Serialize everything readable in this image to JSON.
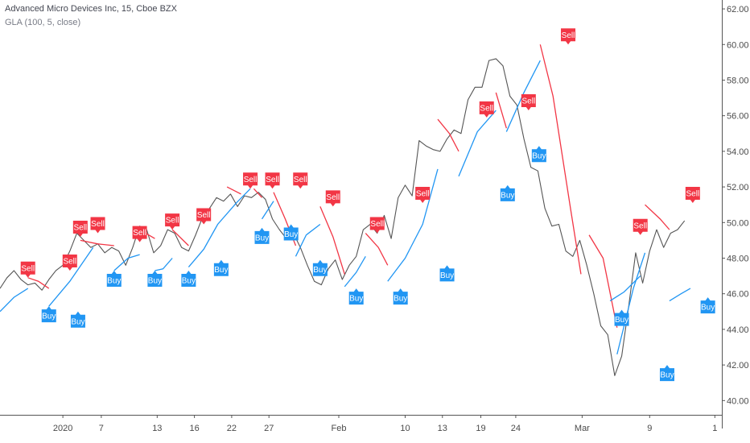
{
  "legend": {
    "line1": "Advanced Micro Devices Inc, 15, Cboe BZX",
    "line2": "GLA (100, 5, close)"
  },
  "colors": {
    "price": "#555555",
    "up": "#2196f3",
    "down": "#f23645",
    "axis": "#555555"
  },
  "signal_labels": {
    "buy": "Buy",
    "sell": "Sell"
  },
  "chart_data": {
    "type": "line",
    "ylim": [
      39.2,
      62.5
    ],
    "y_ticks": [
      40,
      42,
      44,
      46,
      48,
      50,
      52,
      54,
      56,
      58,
      60,
      62
    ],
    "y_tick_labels": [
      "40.00",
      "42.00",
      "44.00",
      "46.00",
      "48.00",
      "50.00",
      "52.00",
      "54.00",
      "56.00",
      "58.00",
      "60.00",
      "62.00"
    ],
    "x_range": [
      0,
      62
    ],
    "x_ticks": [
      {
        "x": 5.4,
        "label": "2020"
      },
      {
        "x": 8.7,
        "label": "7"
      },
      {
        "x": 13.5,
        "label": "13"
      },
      {
        "x": 16.7,
        "label": "16"
      },
      {
        "x": 19.9,
        "label": "22"
      },
      {
        "x": 23.1,
        "label": "27"
      },
      {
        "x": 29.1,
        "label": "Feb"
      },
      {
        "x": 34.8,
        "label": "10"
      },
      {
        "x": 38.0,
        "label": "13"
      },
      {
        "x": 41.3,
        "label": "19"
      },
      {
        "x": 44.3,
        "label": "24"
      },
      {
        "x": 50.0,
        "label": "Mar"
      },
      {
        "x": 55.8,
        "label": "9"
      },
      {
        "x": 61.4,
        "label": "1"
      }
    ],
    "price": [
      [
        0,
        46.3
      ],
      [
        0.6,
        46.9
      ],
      [
        1.2,
        47.3
      ],
      [
        1.8,
        46.8
      ],
      [
        2.4,
        46.5
      ],
      [
        3.0,
        46.6
      ],
      [
        3.6,
        46.2
      ],
      [
        4.2,
        46.8
      ],
      [
        4.8,
        47.3
      ],
      [
        5.4,
        47.6
      ],
      [
        6.0,
        48.4
      ],
      [
        6.6,
        49.4
      ],
      [
        7.2,
        49.0
      ],
      [
        7.8,
        48.6
      ],
      [
        8.4,
        48.8
      ],
      [
        9.0,
        48.3
      ],
      [
        9.6,
        48.6
      ],
      [
        10.2,
        48.4
      ],
      [
        10.8,
        47.6
      ],
      [
        11.4,
        48.6
      ],
      [
        12.0,
        49.8
      ],
      [
        12.6,
        49.6
      ],
      [
        13.2,
        48.3
      ],
      [
        13.8,
        48.7
      ],
      [
        14.4,
        49.6
      ],
      [
        15.0,
        49.4
      ],
      [
        15.6,
        48.6
      ],
      [
        16.2,
        48.4
      ],
      [
        16.8,
        49.3
      ],
      [
        17.4,
        50.3
      ],
      [
        18.0,
        50.8
      ],
      [
        18.6,
        51.4
      ],
      [
        19.2,
        51.2
      ],
      [
        19.8,
        51.6
      ],
      [
        20.4,
        50.9
      ],
      [
        21.0,
        51.5
      ],
      [
        21.6,
        51.4
      ],
      [
        22.2,
        51.7
      ],
      [
        22.8,
        51.3
      ],
      [
        23.4,
        50.2
      ],
      [
        24.0,
        49.6
      ],
      [
        24.6,
        49.1
      ],
      [
        25.2,
        49.4
      ],
      [
        25.8,
        48.6
      ],
      [
        26.4,
        47.6
      ],
      [
        27.0,
        46.7
      ],
      [
        27.6,
        46.5
      ],
      [
        28.2,
        47.4
      ],
      [
        28.8,
        47.9
      ],
      [
        29.4,
        46.8
      ],
      [
        30.0,
        47.6
      ],
      [
        30.6,
        48.1
      ],
      [
        31.2,
        49.6
      ],
      [
        31.8,
        49.9
      ],
      [
        32.4,
        49.4
      ],
      [
        33.0,
        50.4
      ],
      [
        33.6,
        49.1
      ],
      [
        34.2,
        51.4
      ],
      [
        34.8,
        52.1
      ],
      [
        35.4,
        51.5
      ],
      [
        36.0,
        54.6
      ],
      [
        36.6,
        54.3
      ],
      [
        37.2,
        54.1
      ],
      [
        37.8,
        54.0
      ],
      [
        38.4,
        54.7
      ],
      [
        39.0,
        55.2
      ],
      [
        39.6,
        55.0
      ],
      [
        40.2,
        56.9
      ],
      [
        40.8,
        57.6
      ],
      [
        41.4,
        57.6
      ],
      [
        42.0,
        59.1
      ],
      [
        42.6,
        59.2
      ],
      [
        43.2,
        58.8
      ],
      [
        43.8,
        57.1
      ],
      [
        44.4,
        56.6
      ],
      [
        45.0,
        54.7
      ],
      [
        45.6,
        53.1
      ],
      [
        46.2,
        52.9
      ],
      [
        46.8,
        50.8
      ],
      [
        47.4,
        49.8
      ],
      [
        48.0,
        49.9
      ],
      [
        48.6,
        48.4
      ],
      [
        49.2,
        48.1
      ],
      [
        49.8,
        49.0
      ],
      [
        50.4,
        47.6
      ],
      [
        51.0,
        46.0
      ],
      [
        51.6,
        44.2
      ],
      [
        52.2,
        43.7
      ],
      [
        52.8,
        41.4
      ],
      [
        53.4,
        42.5
      ],
      [
        54.0,
        45.3
      ],
      [
        54.6,
        48.3
      ],
      [
        55.2,
        46.6
      ],
      [
        55.8,
        48.4
      ],
      [
        56.4,
        49.6
      ],
      [
        57.0,
        48.6
      ],
      [
        57.6,
        49.4
      ],
      [
        58.2,
        49.6
      ],
      [
        58.8,
        50.1
      ]
    ],
    "signal_lines": [
      {
        "type": "up",
        "points": [
          [
            0,
            45.0
          ],
          [
            1.2,
            45.8
          ],
          [
            2.4,
            46.3
          ]
        ]
      },
      {
        "type": "down",
        "points": [
          [
            2.4,
            46.9
          ],
          [
            3.3,
            46.7
          ],
          [
            4.2,
            46.3
          ]
        ]
      },
      {
        "type": "up",
        "points": [
          [
            4.2,
            45.3
          ],
          [
            6.0,
            46.7
          ],
          [
            8.0,
            48.6
          ]
        ]
      },
      {
        "type": "down",
        "points": [
          [
            6.9,
            49.0
          ],
          [
            8.4,
            48.8
          ]
        ]
      },
      {
        "type": "down",
        "points": [
          [
            8.4,
            48.8
          ],
          [
            9.8,
            48.7
          ]
        ]
      },
      {
        "type": "up",
        "points": [
          [
            9.8,
            47.3
          ],
          [
            11.0,
            48.0
          ],
          [
            12.0,
            48.2
          ]
        ]
      },
      {
        "type": "down",
        "points": [
          [
            12.0,
            49.6
          ],
          [
            13.3,
            49.1
          ]
        ]
      },
      {
        "type": "up",
        "points": [
          [
            13.3,
            47.3
          ],
          [
            14.0,
            47.4
          ],
          [
            14.8,
            48.0
          ]
        ]
      },
      {
        "type": "down",
        "points": [
          [
            14.8,
            49.6
          ],
          [
            16.2,
            48.7
          ]
        ]
      },
      {
        "type": "up",
        "points": [
          [
            16.2,
            47.5
          ],
          [
            17.5,
            48.5
          ],
          [
            18.7,
            49.9
          ],
          [
            20.3,
            51.1
          ],
          [
            21.5,
            51.9
          ]
        ]
      },
      {
        "type": "down",
        "points": [
          [
            19.5,
            52.0
          ],
          [
            20.7,
            51.6
          ]
        ]
      },
      {
        "type": "down",
        "points": [
          [
            21.8,
            51.9
          ],
          [
            22.5,
            51.4
          ]
        ]
      },
      {
        "type": "up",
        "points": [
          [
            22.5,
            50.2
          ],
          [
            23.5,
            51.2
          ]
        ]
      },
      {
        "type": "down",
        "points": [
          [
            23.5,
            51.7
          ],
          [
            24.5,
            50.2
          ],
          [
            25.4,
            48.7
          ]
        ]
      },
      {
        "type": "up",
        "points": [
          [
            25.4,
            48.1
          ],
          [
            26.3,
            49.3
          ],
          [
            27.5,
            49.9
          ]
        ]
      },
      {
        "type": "down",
        "points": [
          [
            27.5,
            50.9
          ],
          [
            28.6,
            49.2
          ],
          [
            29.6,
            47.1
          ]
        ]
      },
      {
        "type": "up",
        "points": [
          [
            29.6,
            46.4
          ],
          [
            30.6,
            47.2
          ],
          [
            31.4,
            48.1
          ]
        ]
      },
      {
        "type": "down",
        "points": [
          [
            31.4,
            49.4
          ],
          [
            32.5,
            48.6
          ],
          [
            33.3,
            47.6
          ]
        ]
      },
      {
        "type": "up",
        "points": [
          [
            33.3,
            46.7
          ],
          [
            34.8,
            48.0
          ],
          [
            36.3,
            49.9
          ],
          [
            37.6,
            53.0
          ]
        ]
      },
      {
        "type": "down",
        "points": [
          [
            37.6,
            55.8
          ],
          [
            38.6,
            55.0
          ],
          [
            39.4,
            54.0
          ]
        ]
      },
      {
        "type": "up",
        "points": [
          [
            39.4,
            52.6
          ],
          [
            41.0,
            55.1
          ],
          [
            42.6,
            56.3
          ]
        ]
      },
      {
        "type": "down",
        "points": [
          [
            42.6,
            57.3
          ],
          [
            43.5,
            55.3
          ]
        ]
      },
      {
        "type": "up",
        "points": [
          [
            43.5,
            55.1
          ],
          [
            45.0,
            57.3
          ],
          [
            46.4,
            59.1
          ]
        ]
      },
      {
        "type": "down",
        "points": [
          [
            46.4,
            60.0
          ],
          [
            47.5,
            57.1
          ],
          [
            49.0,
            50.8
          ],
          [
            49.9,
            47.1
          ]
        ]
      },
      {
        "type": "down",
        "points": [
          [
            50.6,
            49.3
          ],
          [
            51.8,
            48.0
          ],
          [
            53.0,
            44.1
          ]
        ]
      },
      {
        "type": "up",
        "points": [
          [
            53.0,
            42.6
          ],
          [
            54.4,
            46.3
          ],
          [
            55.4,
            48.3
          ]
        ]
      },
      {
        "type": "up",
        "points": [
          [
            52.4,
            45.6
          ],
          [
            53.6,
            46.1
          ],
          [
            55.0,
            47.0
          ]
        ]
      },
      {
        "type": "down",
        "points": [
          [
            55.4,
            51.0
          ],
          [
            56.7,
            50.2
          ],
          [
            57.5,
            49.6
          ]
        ]
      },
      {
        "type": "up",
        "points": [
          [
            57.5,
            45.6
          ],
          [
            58.5,
            46.0
          ],
          [
            59.3,
            46.3
          ]
        ]
      }
    ],
    "signals": [
      {
        "type": "sell",
        "x": 2.4,
        "y": 46.9
      },
      {
        "type": "buy",
        "x": 4.2,
        "y": 45.3
      },
      {
        "type": "sell",
        "x": 6.0,
        "y": 47.3
      },
      {
        "type": "buy",
        "x": 6.7,
        "y": 45.0
      },
      {
        "type": "sell",
        "x": 6.9,
        "y": 49.2
      },
      {
        "type": "sell",
        "x": 8.4,
        "y": 49.4
      },
      {
        "type": "buy",
        "x": 9.8,
        "y": 47.3
      },
      {
        "type": "sell",
        "x": 12.0,
        "y": 48.9
      },
      {
        "type": "buy",
        "x": 13.3,
        "y": 47.3
      },
      {
        "type": "sell",
        "x": 14.8,
        "y": 49.6
      },
      {
        "type": "buy",
        "x": 16.2,
        "y": 47.3
      },
      {
        "type": "sell",
        "x": 17.5,
        "y": 49.9
      },
      {
        "type": "buy",
        "x": 19.0,
        "y": 47.9
      },
      {
        "type": "sell",
        "x": 21.5,
        "y": 51.9
      },
      {
        "type": "buy",
        "x": 22.5,
        "y": 49.7
      },
      {
        "type": "sell",
        "x": 23.4,
        "y": 51.9
      },
      {
        "type": "buy",
        "x": 25.0,
        "y": 49.9
      },
      {
        "type": "sell",
        "x": 25.8,
        "y": 51.9
      },
      {
        "type": "buy",
        "x": 27.5,
        "y": 47.9
      },
      {
        "type": "sell",
        "x": 28.6,
        "y": 50.9
      },
      {
        "type": "buy",
        "x": 30.6,
        "y": 46.3
      },
      {
        "type": "sell",
        "x": 32.4,
        "y": 49.4
      },
      {
        "type": "buy",
        "x": 34.4,
        "y": 46.3
      },
      {
        "type": "sell",
        "x": 36.3,
        "y": 51.1
      },
      {
        "type": "buy",
        "x": 38.4,
        "y": 47.6
      },
      {
        "type": "sell",
        "x": 41.8,
        "y": 55.9
      },
      {
        "type": "buy",
        "x": 43.6,
        "y": 52.1
      },
      {
        "type": "sell",
        "x": 45.4,
        "y": 56.3
      },
      {
        "type": "buy",
        "x": 46.3,
        "y": 54.3
      },
      {
        "type": "sell",
        "x": 48.8,
        "y": 60.0
      },
      {
        "type": "sell",
        "x": 55.0,
        "y": 49.3
      },
      {
        "type": "buy",
        "x": 53.4,
        "y": 45.1
      },
      {
        "type": "buy",
        "x": 57.3,
        "y": 42.0
      },
      {
        "type": "sell",
        "x": 59.5,
        "y": 51.1
      },
      {
        "type": "buy",
        "x": 60.8,
        "y": 45.8
      }
    ]
  }
}
